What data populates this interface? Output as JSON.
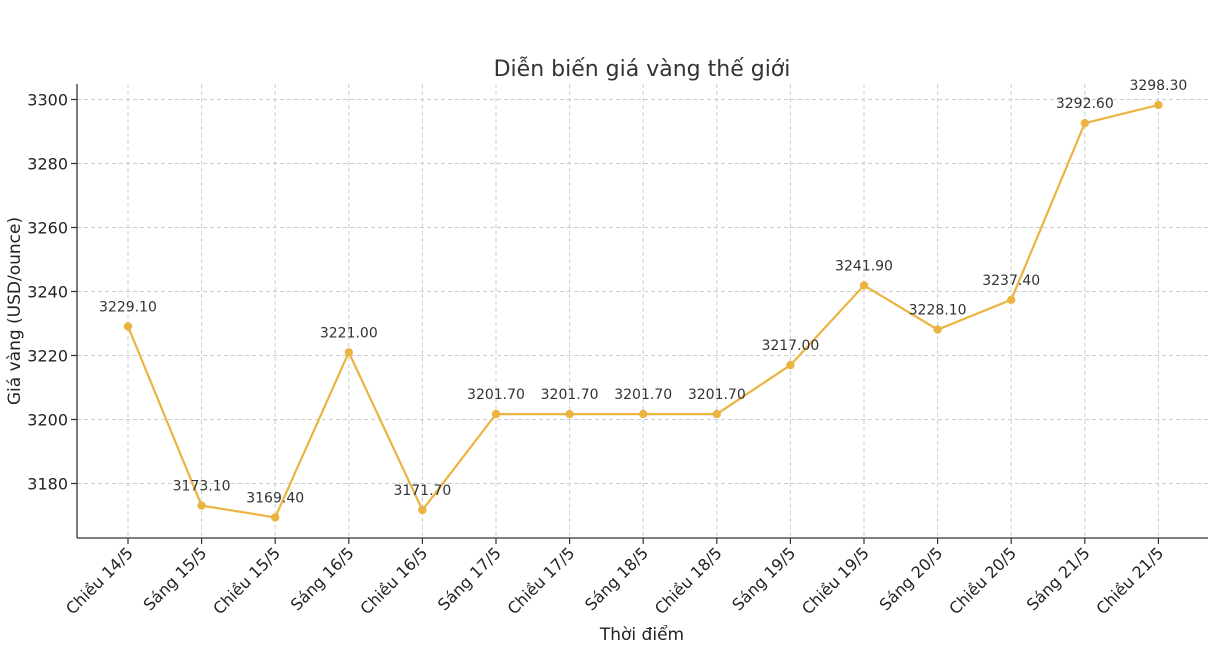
{
  "chart_data": {
    "type": "line",
    "title": "Diễn biến giá vàng thế giới",
    "xlabel": "Thời điểm",
    "ylabel": "Giá vàng (USD/ounce)",
    "categories": [
      "Chiều 14/5",
      "Sáng 15/5",
      "Chiều 15/5",
      "Sáng 16/5",
      "Chiều 16/5",
      "Sáng 17/5",
      "Chiều 17/5",
      "Sáng 18/5",
      "Chiều 18/5",
      "Sáng 19/5",
      "Chiều 19/5",
      "Sáng 20/5",
      "Chiều 20/5",
      "Sáng 21/5",
      "Chiều 21/5"
    ],
    "values": [
      3229.1,
      3173.1,
      3169.4,
      3221.0,
      3171.7,
      3201.7,
      3201.7,
      3201.7,
      3201.7,
      3217.0,
      3241.9,
      3228.1,
      3237.4,
      3292.6,
      3298.3
    ],
    "data_labels": [
      "3229.10",
      "3173.10",
      "3169.40",
      "3221.00",
      "3171.70",
      "3201.70",
      "3201.70",
      "3201.70",
      "3201.70",
      "3217.00",
      "3241.90",
      "3228.10",
      "3237.40",
      "3292.60",
      "3298.30"
    ],
    "yticks": [
      3180,
      3200,
      3220,
      3240,
      3260,
      3280,
      3300
    ],
    "ylim": [
      3165,
      3305
    ],
    "grid": true,
    "color": "#EBB440"
  }
}
